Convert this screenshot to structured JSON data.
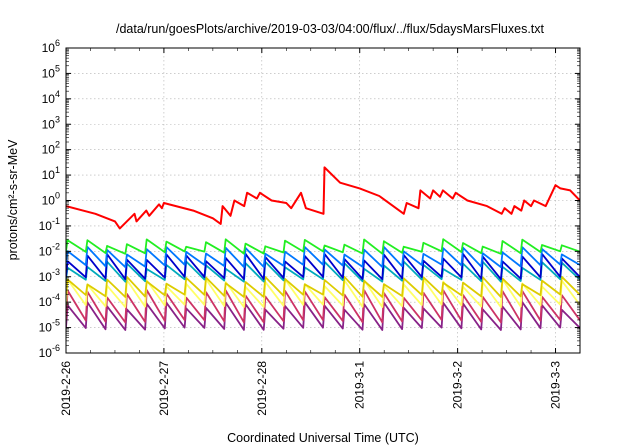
{
  "chart_data": {
    "type": "line",
    "title": "/data/run/goesPlots/archive/2019-03-03/04:00/flux/../flux/5daysMarsFluxes.txt",
    "xlabel": "Coordinated Universal Time (UTC)",
    "ylabel": "protons/cm²-s-sr-MeV",
    "yscale": "log",
    "ylim": [
      1e-06,
      1000000.0
    ],
    "xlim": [
      0,
      5.25
    ],
    "grid": "on, dotted",
    "legend": "none",
    "x_ticks": [
      {
        "x": 0,
        "label": "2019-2-26"
      },
      {
        "x": 1,
        "label": "2019-2-27"
      },
      {
        "x": 2,
        "label": "2019-2-28"
      },
      {
        "x": 3,
        "label": "2019-3-1"
      },
      {
        "x": 4,
        "label": "2019-3-2"
      },
      {
        "x": 5,
        "label": "2019-3-3"
      }
    ],
    "y_ticks": [
      {
        "exp": -6,
        "base": "10",
        "sup": "-6"
      },
      {
        "exp": -5,
        "base": "10",
        "sup": "-5"
      },
      {
        "exp": -4,
        "base": "10",
        "sup": "-4"
      },
      {
        "exp": -3,
        "base": "10",
        "sup": "-3"
      },
      {
        "exp": -2,
        "base": "10",
        "sup": "-2"
      },
      {
        "exp": -1,
        "base": "10",
        "sup": "-1"
      },
      {
        "exp": 0,
        "base": "10",
        "sup": "0"
      },
      {
        "exp": 1,
        "base": "10",
        "sup": "1"
      },
      {
        "exp": 2,
        "base": "10",
        "sup": "2"
      },
      {
        "exp": 3,
        "base": "10",
        "sup": "3"
      },
      {
        "exp": 4,
        "base": "10",
        "sup": "4"
      },
      {
        "exp": 5,
        "base": "10",
        "sup": "5"
      },
      {
        "exp": 6,
        "base": "10",
        "sup": "6"
      }
    ],
    "series": [
      {
        "color": "#ff0000",
        "x": [
          0,
          0.3,
          0.5,
          0.55,
          0.7,
          0.72,
          0.82,
          0.85,
          0.95,
          0.98,
          1.0,
          1.3,
          1.5,
          1.58,
          1.6,
          1.68,
          1.72,
          1.82,
          1.85,
          1.95,
          1.98,
          2.1,
          2.25,
          2.3,
          2.4,
          2.45,
          2.63,
          2.64,
          2.8,
          3.0,
          3.2,
          3.45,
          3.48,
          3.6,
          3.62,
          3.72,
          3.75,
          3.82,
          3.85,
          3.95,
          3.98,
          4.1,
          4.3,
          4.45,
          4.48,
          4.55,
          4.58,
          4.65,
          4.68,
          4.75,
          4.78,
          4.9,
          5.0,
          5.05,
          5.15,
          5.25
        ],
        "y": [
          0.6,
          0.3,
          0.15,
          0.08,
          0.3,
          0.15,
          0.4,
          0.25,
          0.7,
          0.5,
          0.8,
          0.4,
          0.2,
          0.12,
          0.6,
          0.25,
          1.0,
          0.6,
          2.0,
          1.2,
          2.0,
          1.0,
          0.8,
          0.5,
          2.0,
          0.5,
          0.3,
          20,
          5,
          3,
          1.5,
          0.3,
          0.8,
          0.5,
          2.5,
          1.2,
          2.5,
          1.4,
          2.5,
          1.2,
          2.0,
          1.0,
          0.6,
          0.3,
          0.5,
          0.3,
          0.6,
          0.4,
          1.0,
          0.6,
          1.0,
          0.6,
          4.0,
          3.0,
          2.5,
          1.0
        ]
      },
      {
        "color": "#22ee22",
        "base": 0.01,
        "peak": 0.03,
        "peaks": 26
      },
      {
        "color": "#0077ff",
        "base": 0.003,
        "peak": 0.015,
        "peaks": 26
      },
      {
        "color": "#0000cc",
        "base": 0.001,
        "peak": 0.008,
        "peaks": 26
      },
      {
        "color": "#00aabb",
        "base": 0.0008,
        "peak": 0.004,
        "peaks": 26
      },
      {
        "color": "#ddcc00",
        "base": 0.0002,
        "peak": 0.001,
        "peaks": 26
      },
      {
        "color": "#ffff66",
        "base": 8e-05,
        "peak": 0.0008,
        "peaks": 26
      },
      {
        "color": "#cc3366",
        "base": 2e-05,
        "peak": 0.0003,
        "peaks": 26
      },
      {
        "color": "#882288",
        "base": 1e-05,
        "peak": 0.0001,
        "peaks": 26
      }
    ]
  }
}
